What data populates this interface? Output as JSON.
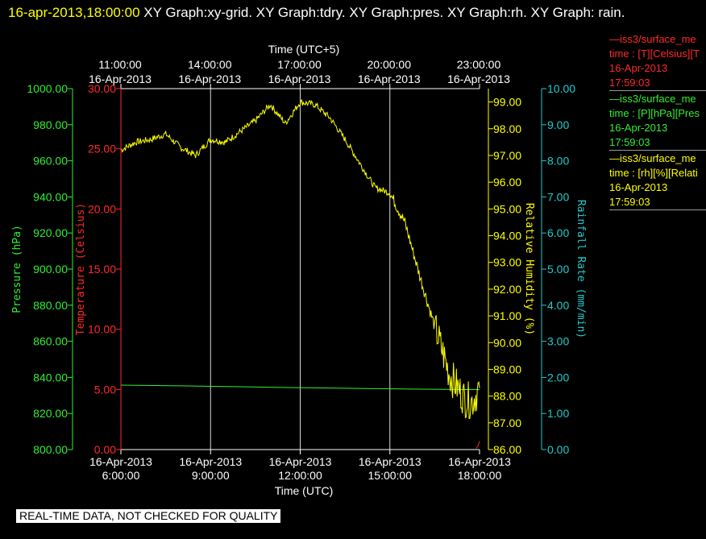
{
  "header": {
    "timestamp": "16-apr-2013,18:00:00",
    "graphs_text": "XY Graph:xy-grid.  XY Graph:tdry.  XY Graph:pres.  XY Graph:rh.  XY Graph: rain."
  },
  "legend": [
    {
      "line1": "—iss3/surface_me",
      "line2": "time : [T][Celsius][T",
      "line3": "16-Apr-2013",
      "line4": "17:59:03",
      "color": "#ff2a2a"
    },
    {
      "line1": "—iss3/surface_me",
      "line2": "time : [P][hPa][Pres",
      "line3": "16-Apr-2013",
      "line4": "17:59:03",
      "color": "#33ee33"
    },
    {
      "line1": "—iss3/surface_me",
      "line2": "time : [rh][%][Relati",
      "line3": "16-Apr-2013",
      "line4": "17:59:03",
      "color": "#ffff00"
    }
  ],
  "disclaimer": "REAL-TIME DATA, NOT CHECKED FOR QUALITY",
  "chart_data": {
    "type": "line",
    "x_bottom": {
      "label": "Time (UTC)",
      "ticks": [
        {
          "date": "16-Apr-2013",
          "time": "6:00:00"
        },
        {
          "date": "16-Apr-2013",
          "time": "9:00:00"
        },
        {
          "date": "16-Apr-2013",
          "time": "12:00:00"
        },
        {
          "date": "16-Apr-2013",
          "time": "15:00:00"
        },
        {
          "date": "16-Apr-2013",
          "time": "18:00:00"
        }
      ],
      "range": [
        "16-Apr-2013 06:00",
        "16-Apr-2013 18:00"
      ]
    },
    "x_top": {
      "label": "Time (UTC+5)",
      "ticks": [
        {
          "time": "11:00:00",
          "date": "16-Apr-2013"
        },
        {
          "time": "14:00:00",
          "date": "16-Apr-2013"
        },
        {
          "time": "17:00:00",
          "date": "16-Apr-2013"
        },
        {
          "time": "20:00:00",
          "date": "16-Apr-2013"
        },
        {
          "time": "23:00:00",
          "date": "16-Apr-2013"
        }
      ]
    },
    "axes": {
      "pressure": {
        "label": "Pressure (hPa)",
        "color": "#33ee33",
        "ylim": [
          800,
          1000
        ],
        "ticks": [
          "800.00",
          "820.00",
          "840.00",
          "860.00",
          "880.00",
          "900.00",
          "920.00",
          "940.00",
          "960.00",
          "980.00",
          "1000.00"
        ]
      },
      "temperature": {
        "label": "Temperature (Celsius)",
        "color": "#ff2a2a",
        "ylim": [
          0,
          30
        ],
        "ticks": [
          "0.00",
          "5.00",
          "10.00",
          "15.00",
          "20.00",
          "25.00",
          "30.00"
        ]
      },
      "humidity": {
        "label": "Relative Humidity (%)",
        "color": "#ffff00",
        "ylim": [
          86,
          99.5
        ],
        "ticks": [
          "86.00",
          "87.00",
          "88.00",
          "89.00",
          "90.00",
          "91.00",
          "92.00",
          "93.00",
          "94.00",
          "95.00",
          "96.00",
          "97.00",
          "98.00",
          "99.00"
        ]
      },
      "rain": {
        "label": "Rainfall Rate (mm/min)",
        "color": "#22cccc",
        "ylim": [
          0,
          10
        ],
        "ticks": [
          "0.00",
          "1.00",
          "2.00",
          "3.00",
          "4.00",
          "5.00",
          "6.00",
          "7.00",
          "8.00",
          "9.00",
          "10.00"
        ]
      }
    },
    "series": [
      {
        "name": "pres",
        "axis": "pressure",
        "color": "#33ee33",
        "points": [
          [
            "06:00",
            835.7
          ],
          [
            "08:00",
            835.3
          ],
          [
            "10:00",
            834.8
          ],
          [
            "12:00",
            834.3
          ],
          [
            "14:00",
            833.9
          ],
          [
            "16:00",
            833.5
          ],
          [
            "18:00",
            833.2
          ]
        ]
      },
      {
        "name": "tdry",
        "axis": "temperature",
        "color": "#ff2a2a",
        "points": [
          [
            "17:53",
            0.1
          ],
          [
            "17:57",
            0.3
          ],
          [
            "18:00",
            0.7
          ]
        ]
      },
      {
        "name": "rh",
        "axis": "humidity",
        "color": "#ffff00",
        "points": [
          [
            "06:00",
            97.2
          ],
          [
            "06:30",
            97.5
          ],
          [
            "07:00",
            97.6
          ],
          [
            "07:30",
            97.8
          ],
          [
            "08:00",
            97.3
          ],
          [
            "08:30",
            97.0
          ],
          [
            "09:00",
            97.6
          ],
          [
            "09:30",
            97.5
          ],
          [
            "10:00",
            97.9
          ],
          [
            "10:30",
            98.3
          ],
          [
            "11:00",
            98.9
          ],
          [
            "11:30",
            98.2
          ],
          [
            "12:00",
            99.0
          ],
          [
            "12:30",
            98.9
          ],
          [
            "13:00",
            98.4
          ],
          [
            "13:30",
            97.6
          ],
          [
            "14:00",
            96.7
          ],
          [
            "14:30",
            95.8
          ],
          [
            "15:00",
            95.6
          ],
          [
            "15:30",
            94.5
          ],
          [
            "16:00",
            92.5
          ],
          [
            "16:30",
            90.6
          ],
          [
            "17:00",
            88.8
          ],
          [
            "17:30",
            87.9
          ],
          [
            "17:45",
            87.8
          ],
          [
            "18:00",
            88.3
          ]
        ]
      }
    ],
    "grid": true
  }
}
